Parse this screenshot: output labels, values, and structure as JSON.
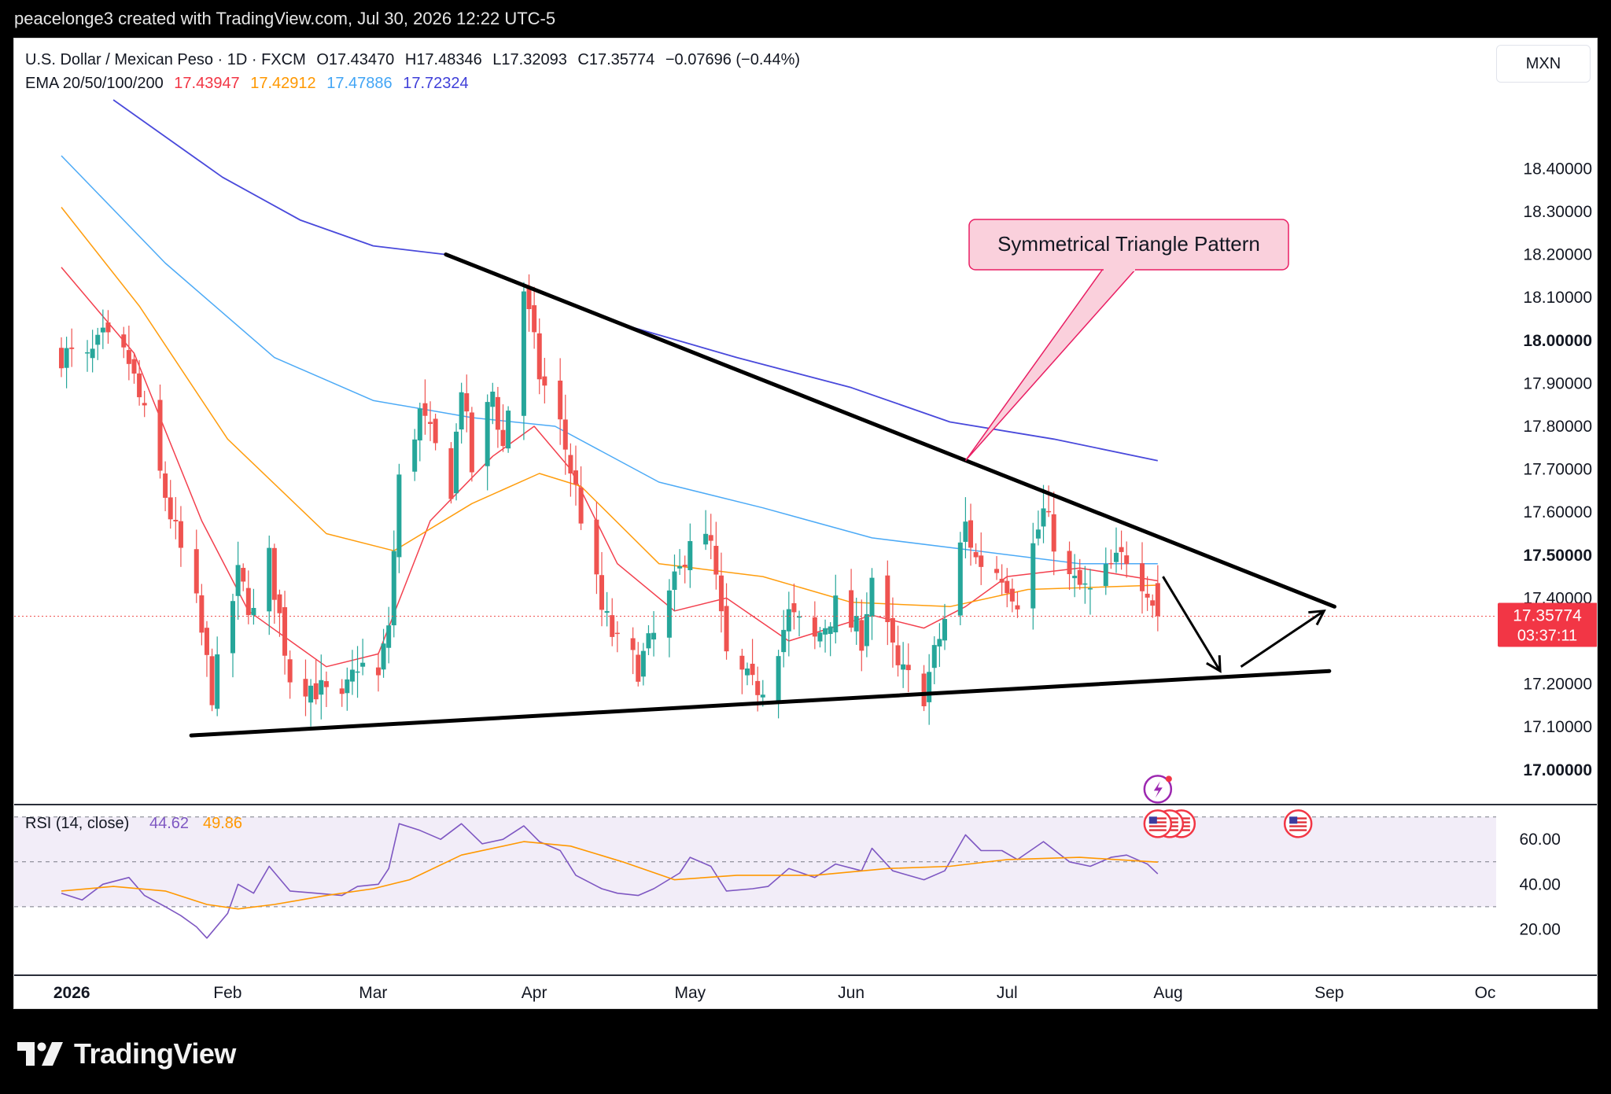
{
  "header": {
    "text": "peacelonge3 created with TradingView.com, Jul 30, 2026 12:22 UTC-5"
  },
  "legend": {
    "symbol": "U.S. Dollar / Mexican Peso · 1D · FXCM",
    "o_label": "O",
    "o": "17.43470",
    "h_label": "H",
    "h": "17.48346",
    "l_label": "L",
    "l": "17.32093",
    "c_label": "C",
    "c": "17.35774",
    "change": "−0.07696 (−0.44%)",
    "ema_label": "EMA 20/50/100/200",
    "ema20": "17.43947",
    "ema50": "17.42912",
    "ema100": "17.47886",
    "ema200": "17.72324"
  },
  "currency": "MXN",
  "price_tag": {
    "price": "17.35774",
    "countdown": "03:37:11"
  },
  "annotation": {
    "text": "Symmetrical Triangle Pattern"
  },
  "rsi_legend": {
    "label": "RSI (14, close)",
    "rsi": "44.62",
    "ma": "49.86"
  },
  "footer": {
    "brand": "TradingView"
  },
  "colors": {
    "up": "#26a69a",
    "down": "#ef5350",
    "ema20": "#f23645",
    "ema50": "#ff9800",
    "ema100": "#42a5f5",
    "ema200": "#3f3fd9",
    "rsi": "#7e57c2",
    "rsi_ma": "#ff9800",
    "callout_bg": "#fad0dc",
    "callout_border": "#e91e63"
  },
  "chart_data": [
    {
      "type": "candlestick",
      "title": "U.S. Dollar / Mexican Peso · 1D · FXCM",
      "y_ticks": [
        "18.40000",
        "18.30000",
        "18.20000",
        "18.10000",
        "18.00000",
        "17.90000",
        "17.80000",
        "17.70000",
        "17.60000",
        "17.50000",
        "17.40000",
        "17.20000",
        "17.10000",
        "17.00000"
      ],
      "x_ticks": [
        "2026",
        "Feb",
        "Mar",
        "Apr",
        "May",
        "Jun",
        "Jul",
        "Aug",
        "Sep",
        "Oc"
      ],
      "ylim": [
        16.93,
        18.56
      ],
      "x_range": [
        "2025-12-31",
        "2026-10-01"
      ],
      "last_close": 17.35774,
      "anchors": [
        [
          "2025-12-31",
          17.97
        ],
        [
          "2026-01-05",
          17.95
        ],
        [
          "2026-01-08",
          18.0
        ],
        [
          "2026-01-13",
          17.95
        ],
        [
          "2026-01-16",
          17.82
        ],
        [
          "2026-01-20",
          17.64
        ],
        [
          "2026-01-22",
          17.55
        ],
        [
          "2026-01-26",
          17.38
        ],
        [
          "2026-01-29",
          17.18
        ],
        [
          "2026-02-03",
          17.45
        ],
        [
          "2026-02-06",
          17.36
        ],
        [
          "2026-02-09",
          17.49
        ],
        [
          "2026-02-13",
          17.22
        ],
        [
          "2026-02-18",
          17.19
        ],
        [
          "2026-02-23",
          17.15
        ],
        [
          "2026-02-26",
          17.25
        ],
        [
          "2026-03-02",
          17.21
        ],
        [
          "2026-03-04",
          17.34
        ],
        [
          "2026-03-06",
          17.67
        ],
        [
          "2026-03-10",
          17.83
        ],
        [
          "2026-03-16",
          17.66
        ],
        [
          "2026-03-18",
          17.9
        ],
        [
          "2026-03-20",
          17.7
        ],
        [
          "2026-03-24",
          17.88
        ],
        [
          "2026-03-26",
          17.75
        ],
        [
          "2026-03-30",
          18.12
        ],
        [
          "2026-04-02",
          17.92
        ],
        [
          "2026-04-06",
          17.8
        ],
        [
          "2026-04-09",
          17.65
        ],
        [
          "2026-04-14",
          17.37
        ],
        [
          "2026-04-17",
          17.29
        ],
        [
          "2026-04-21",
          17.24
        ],
        [
          "2026-04-24",
          17.31
        ],
        [
          "2026-04-29",
          17.46
        ],
        [
          "2026-05-01",
          17.55
        ],
        [
          "2026-05-05",
          17.52
        ],
        [
          "2026-05-08",
          17.26
        ],
        [
          "2026-05-13",
          17.19
        ],
        [
          "2026-05-15",
          17.2
        ],
        [
          "2026-05-20",
          17.36
        ],
        [
          "2026-05-25",
          17.3
        ],
        [
          "2026-05-29",
          17.38
        ],
        [
          "2026-06-03",
          17.31
        ],
        [
          "2026-06-05",
          17.45
        ],
        [
          "2026-06-10",
          17.23
        ],
        [
          "2026-06-15",
          17.18
        ],
        [
          "2026-06-19",
          17.35
        ],
        [
          "2026-06-23",
          17.57
        ],
        [
          "2026-06-25",
          17.49
        ],
        [
          "2026-06-30",
          17.46
        ],
        [
          "2026-07-03",
          17.4
        ],
        [
          "2026-07-08",
          17.6
        ],
        [
          "2026-07-13",
          17.44
        ],
        [
          "2026-07-17",
          17.41
        ],
        [
          "2026-07-21",
          17.47
        ],
        [
          "2026-07-24",
          17.5
        ],
        [
          "2026-07-28",
          17.43
        ],
        [
          "2026-07-30",
          17.36
        ]
      ],
      "ema_series": [
        {
          "name": "EMA 20",
          "last": 17.43947,
          "points": [
            [
              "2025-12-31",
              18.17
            ],
            [
              "2026-01-14",
              17.97
            ],
            [
              "2026-01-27",
              17.58
            ],
            [
              "2026-02-05",
              17.37
            ],
            [
              "2026-02-20",
              17.24
            ],
            [
              "2026-03-02",
              17.27
            ],
            [
              "2026-03-12",
              17.58
            ],
            [
              "2026-03-24",
              17.73
            ],
            [
              "2026-04-01",
              17.8
            ],
            [
              "2026-04-08",
              17.7
            ],
            [
              "2026-04-17",
              17.48
            ],
            [
              "2026-04-28",
              17.37
            ],
            [
              "2026-05-08",
              17.4
            ],
            [
              "2026-05-20",
              17.3
            ],
            [
              "2026-06-05",
              17.36
            ],
            [
              "2026-06-15",
              17.33
            ],
            [
              "2026-06-23",
              17.38
            ],
            [
              "2026-07-01",
              17.45
            ],
            [
              "2026-07-15",
              17.47
            ],
            [
              "2026-07-30",
              17.44
            ]
          ]
        },
        {
          "name": "EMA 50",
          "last": 17.42912,
          "points": [
            [
              "2025-12-31",
              18.31
            ],
            [
              "2026-01-15",
              18.08
            ],
            [
              "2026-02-01",
              17.77
            ],
            [
              "2026-02-20",
              17.55
            ],
            [
              "2026-03-05",
              17.51
            ],
            [
              "2026-03-20",
              17.62
            ],
            [
              "2026-04-02",
              17.69
            ],
            [
              "2026-04-10",
              17.66
            ],
            [
              "2026-04-25",
              17.48
            ],
            [
              "2026-05-15",
              17.45
            ],
            [
              "2026-06-01",
              17.39
            ],
            [
              "2026-06-20",
              17.38
            ],
            [
              "2026-07-05",
              17.42
            ],
            [
              "2026-07-30",
              17.43
            ]
          ]
        },
        {
          "name": "EMA 100",
          "last": 17.47886,
          "points": [
            [
              "2025-12-31",
              18.43
            ],
            [
              "2026-01-20",
              18.18
            ],
            [
              "2026-02-10",
              17.96
            ],
            [
              "2026-03-01",
              17.86
            ],
            [
              "2026-03-20",
              17.82
            ],
            [
              "2026-04-05",
              17.8
            ],
            [
              "2026-04-25",
              17.67
            ],
            [
              "2026-05-15",
              17.61
            ],
            [
              "2026-06-05",
              17.54
            ],
            [
              "2026-06-25",
              17.51
            ],
            [
              "2026-07-15",
              17.48
            ],
            [
              "2026-07-30",
              17.48
            ]
          ]
        },
        {
          "name": "EMA 200",
          "last": 17.72324,
          "points": [
            [
              "2026-01-10",
              18.56
            ],
            [
              "2026-01-31",
              18.38
            ],
            [
              "2026-02-15",
              18.28
            ],
            [
              "2026-03-01",
              18.22
            ],
            [
              "2026-03-15",
              18.2
            ],
            [
              "2026-04-01",
              18.12
            ],
            [
              "2026-04-20",
              18.03
            ],
            [
              "2026-05-10",
              17.96
            ],
            [
              "2026-06-01",
              17.89
            ],
            [
              "2026-06-20",
              17.81
            ],
            [
              "2026-07-10",
              17.77
            ],
            [
              "2026-07-30",
              17.72
            ]
          ]
        }
      ],
      "trendlines": [
        {
          "from": [
            "2026-03-15",
            18.2
          ],
          "to": [
            "2026-09-02",
            17.38
          ]
        },
        {
          "from": [
            "2026-01-25",
            17.08
          ],
          "to": [
            "2026-09-01",
            17.23
          ]
        }
      ],
      "arrows": [
        {
          "from": [
            "2026-07-31",
            17.45
          ],
          "to": [
            "2026-08-11",
            17.23
          ]
        },
        {
          "from": [
            "2026-08-15",
            17.24
          ],
          "to": [
            "2026-08-31",
            17.37
          ]
        }
      ],
      "callout_anchor": [
        "2026-06-23",
        17.72
      ]
    },
    {
      "type": "line",
      "title": "RSI (14, close)",
      "y_ticks": [
        "60.00",
        "40.00",
        "20.00"
      ],
      "ylim": [
        4,
        72
      ],
      "bands": [
        30,
        50,
        70
      ],
      "series": [
        {
          "name": "RSI",
          "points": [
            [
              "2025-12-31",
              36
            ],
            [
              "2026-01-04",
              33
            ],
            [
              "2026-01-08",
              40
            ],
            [
              "2026-01-13",
              43
            ],
            [
              "2026-01-16",
              35
            ],
            [
              "2026-01-20",
              30
            ],
            [
              "2026-01-23",
              26
            ],
            [
              "2026-01-26",
              21
            ],
            [
              "2026-01-28",
              16
            ],
            [
              "2026-02-01",
              27
            ],
            [
              "2026-02-03",
              40
            ],
            [
              "2026-02-06",
              36
            ],
            [
              "2026-02-09",
              48
            ],
            [
              "2026-02-13",
              37
            ],
            [
              "2026-02-18",
              36
            ],
            [
              "2026-02-23",
              35
            ],
            [
              "2026-02-26",
              39
            ],
            [
              "2026-03-02",
              40
            ],
            [
              "2026-03-04",
              47
            ],
            [
              "2026-03-06",
              67
            ],
            [
              "2026-03-10",
              64
            ],
            [
              "2026-03-14",
              60
            ],
            [
              "2026-03-18",
              67
            ],
            [
              "2026-03-22",
              58
            ],
            [
              "2026-03-26",
              60
            ],
            [
              "2026-03-30",
              66
            ],
            [
              "2026-04-02",
              59
            ],
            [
              "2026-04-06",
              55
            ],
            [
              "2026-04-09",
              44
            ],
            [
              "2026-04-14",
              38
            ],
            [
              "2026-04-17",
              36
            ],
            [
              "2026-04-21",
              35
            ],
            [
              "2026-04-24",
              38
            ],
            [
              "2026-04-29",
              45
            ],
            [
              "2026-05-01",
              52
            ],
            [
              "2026-05-05",
              48
            ],
            [
              "2026-05-08",
              37
            ],
            [
              "2026-05-13",
              38
            ],
            [
              "2026-05-16",
              39
            ],
            [
              "2026-05-20",
              47
            ],
            [
              "2026-05-25",
              43
            ],
            [
              "2026-05-29",
              49
            ],
            [
              "2026-06-03",
              46
            ],
            [
              "2026-06-05",
              56
            ],
            [
              "2026-06-09",
              46
            ],
            [
              "2026-06-15",
              42
            ],
            [
              "2026-06-19",
              46
            ],
            [
              "2026-06-23",
              62
            ],
            [
              "2026-06-26",
              55
            ],
            [
              "2026-06-30",
              55
            ],
            [
              "2026-07-03",
              51
            ],
            [
              "2026-07-08",
              59
            ],
            [
              "2026-07-13",
              50
            ],
            [
              "2026-07-17",
              48
            ],
            [
              "2026-07-21",
              52
            ],
            [
              "2026-07-24",
              53
            ],
            [
              "2026-07-28",
              49
            ],
            [
              "2026-07-30",
              44.62
            ]
          ]
        },
        {
          "name": "MA",
          "points": [
            [
              "2025-12-31",
              37
            ],
            [
              "2026-01-10",
              39
            ],
            [
              "2026-01-20",
              37
            ],
            [
              "2026-01-28",
              31
            ],
            [
              "2026-02-03",
              29
            ],
            [
              "2026-02-10",
              31
            ],
            [
              "2026-02-20",
              35
            ],
            [
              "2026-03-01",
              38
            ],
            [
              "2026-03-08",
              42
            ],
            [
              "2026-03-18",
              53
            ],
            [
              "2026-03-30",
              59
            ],
            [
              "2026-04-08",
              57
            ],
            [
              "2026-04-18",
              50
            ],
            [
              "2026-04-28",
              42
            ],
            [
              "2026-05-10",
              44
            ],
            [
              "2026-05-25",
              44
            ],
            [
              "2026-06-08",
              47
            ],
            [
              "2026-06-20",
              48
            ],
            [
              "2026-07-01",
              51
            ],
            [
              "2026-07-15",
              52
            ],
            [
              "2026-07-30",
              49.86
            ]
          ]
        }
      ]
    }
  ]
}
